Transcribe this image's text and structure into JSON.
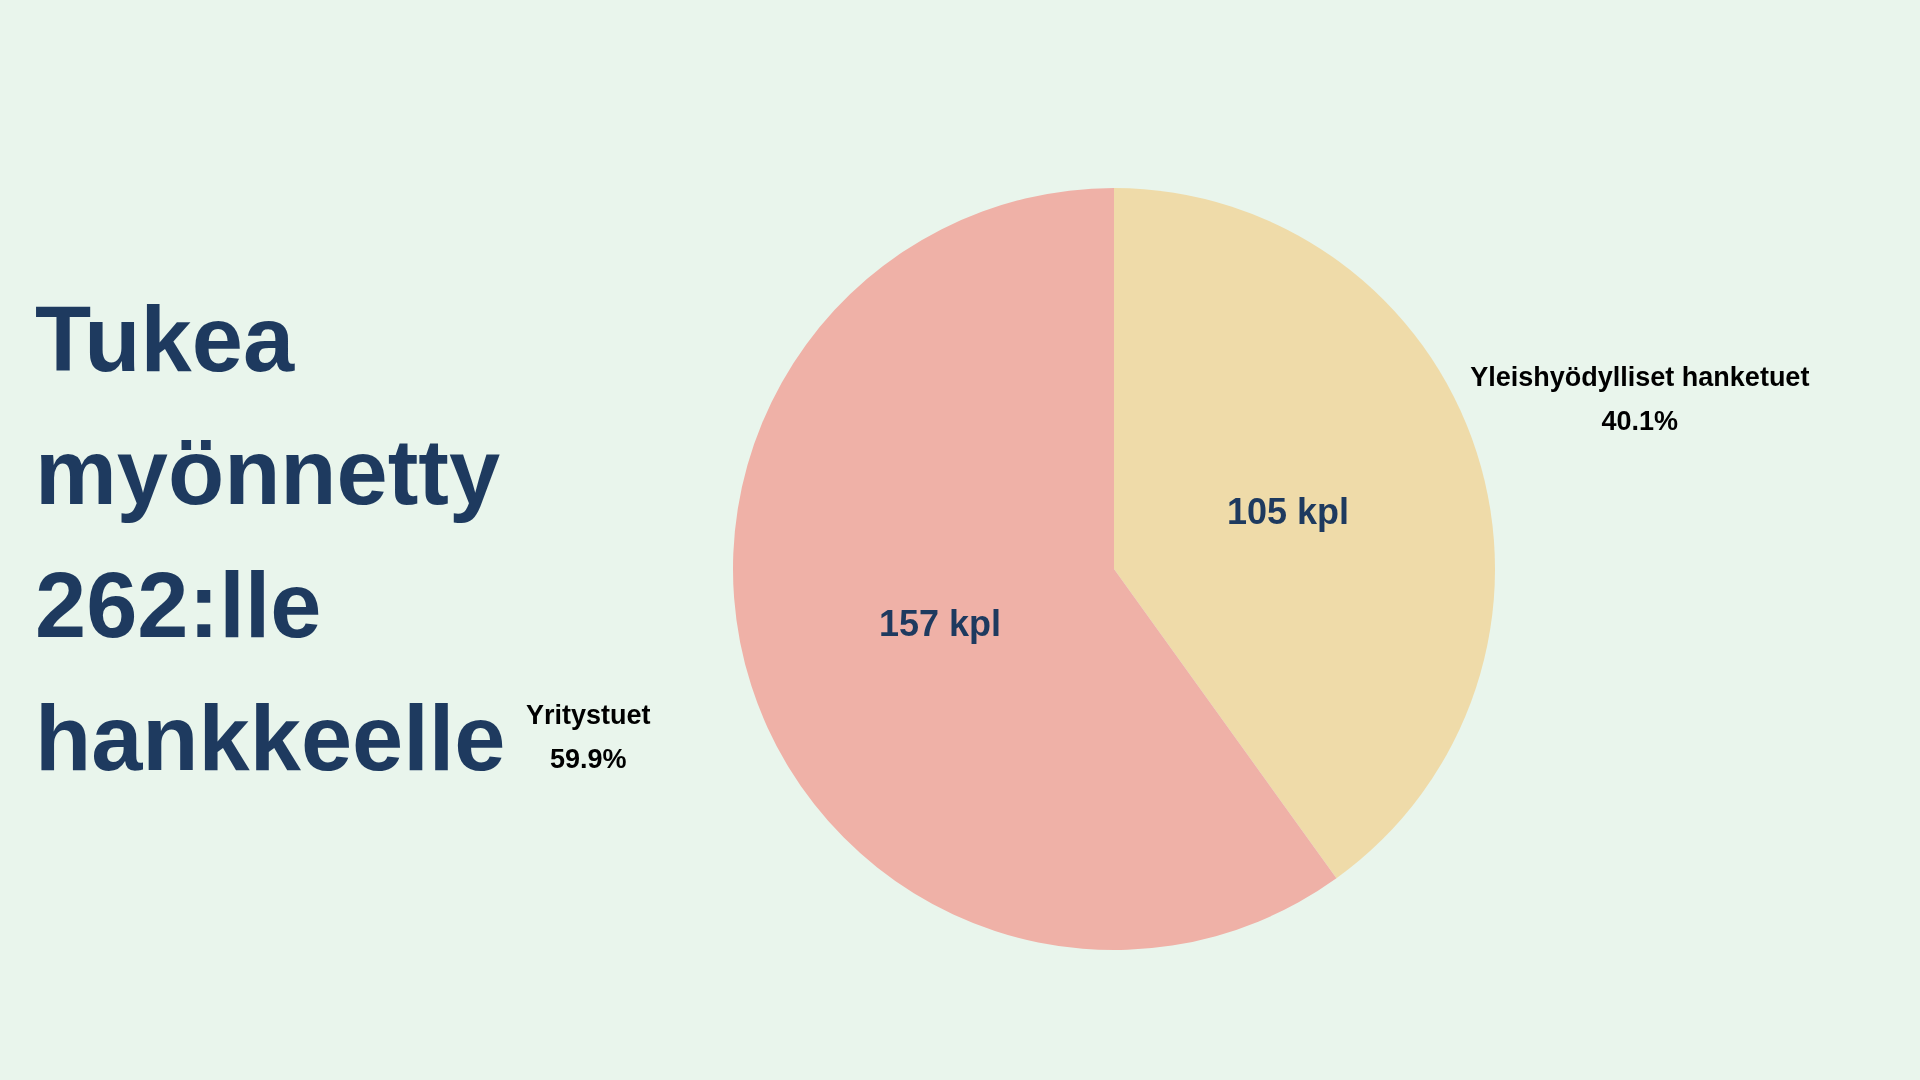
{
  "chart_data": {
    "type": "pie",
    "title": "Tukea myönnetty 262:lle hankkeelle",
    "categories": [
      "Yleishyödylliset hanketuet",
      "Yritystuet"
    ],
    "values": [
      105,
      157
    ],
    "colors": [
      "#efdba9",
      "#efb1a7"
    ],
    "value_labels": [
      "105 kpl",
      "157 kpl"
    ],
    "annotations": [
      {
        "text": "40.1%",
        "x": "Yleishyödylliset hanketuet"
      },
      {
        "text": "59.9%",
        "x": "Yritystuet"
      }
    ]
  }
}
